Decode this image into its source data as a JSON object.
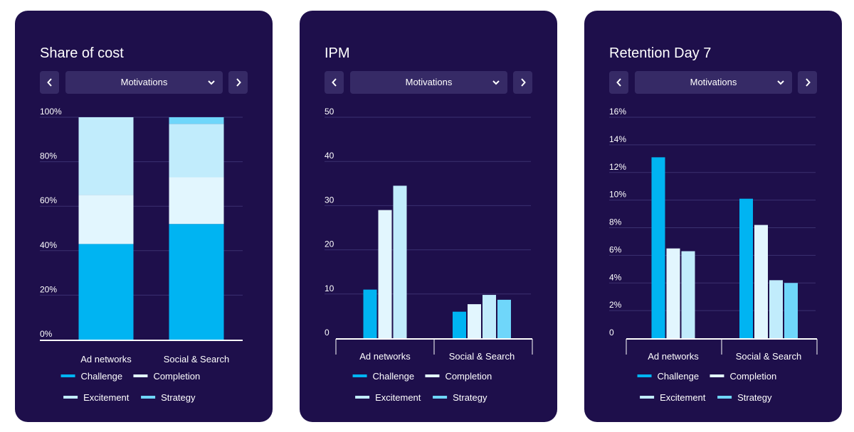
{
  "colors": {
    "card_bg": "#1e0f4b",
    "control_bg": "#362a66",
    "grid": "#3b3170",
    "text": "#ffffff",
    "challenge": "#00b4f2",
    "completion": "#e2f6fe",
    "excitement": "#c1ecfc",
    "strategy": "#6fd6fa"
  },
  "icons": {
    "prev": "chevron-left-icon",
    "next": "chevron-right-icon",
    "dropdown": "chevron-down-icon",
    "legend_swatch": "line-swatch"
  },
  "chart_data": [
    {
      "type": "bar",
      "stacked": true,
      "title": "Share of cost",
      "selector": "Motivations",
      "categories": [
        "Ad networks",
        "Social & Search"
      ],
      "series": [
        {
          "name": "Challenge",
          "values": [
            43,
            52
          ]
        },
        {
          "name": "Completion",
          "values": [
            22,
            21
          ]
        },
        {
          "name": "Excitement",
          "values": [
            35,
            24
          ]
        },
        {
          "name": "Strategy",
          "values": [
            0,
            3
          ]
        }
      ],
      "ylim": [
        0,
        100
      ],
      "yticks": [
        "0%",
        "20%",
        "40%",
        "60%",
        "80%",
        "100%"
      ],
      "grid": true,
      "legend": "bottom"
    },
    {
      "type": "bar",
      "stacked": false,
      "title": "IPM",
      "selector": "Motivations",
      "categories": [
        "Ad networks",
        "Social & Search"
      ],
      "series": [
        {
          "name": "Challenge",
          "values": [
            11,
            6
          ]
        },
        {
          "name": "Completion",
          "values": [
            29,
            7.7
          ]
        },
        {
          "name": "Excitement",
          "values": [
            34.5,
            9.8
          ]
        },
        {
          "name": "Strategy",
          "values": [
            0,
            8.7
          ]
        }
      ],
      "ylim": [
        0,
        50
      ],
      "yticks": [
        "0",
        "10",
        "20",
        "30",
        "40",
        "50"
      ],
      "grid": true,
      "legend": "bottom"
    },
    {
      "type": "bar",
      "stacked": false,
      "title": "Retention Day 7",
      "selector": "Motivations",
      "categories": [
        "Ad networks",
        "Social & Search"
      ],
      "series": [
        {
          "name": "Challenge",
          "values": [
            13.1,
            10.1
          ]
        },
        {
          "name": "Completion",
          "values": [
            6.5,
            8.2
          ]
        },
        {
          "name": "Excitement",
          "values": [
            6.3,
            4.2
          ]
        },
        {
          "name": "Strategy",
          "values": [
            0,
            4
          ]
        }
      ],
      "ylim": [
        0,
        16
      ],
      "yticks": [
        "0",
        "2%",
        "4%",
        "6%",
        "8%",
        "10%",
        "12%",
        "14%",
        "16%"
      ],
      "grid": true,
      "legend": "bottom"
    }
  ]
}
